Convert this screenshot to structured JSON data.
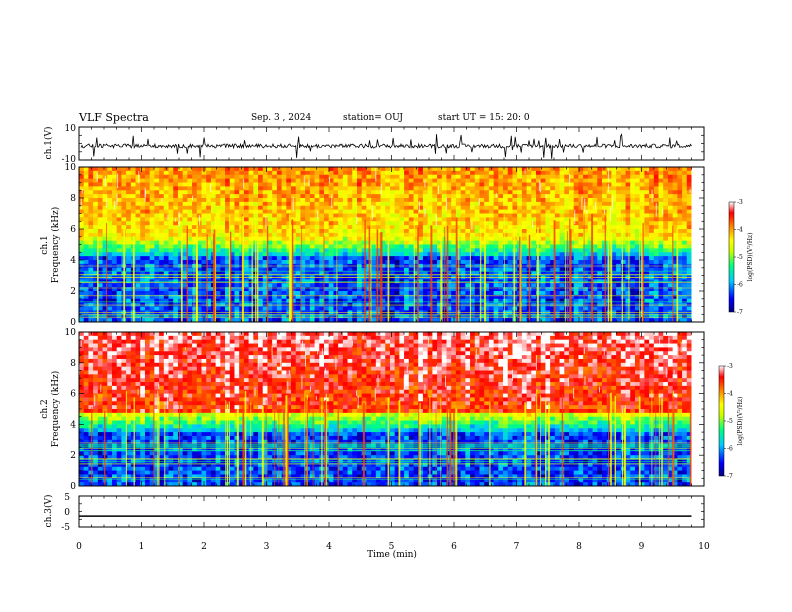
{
  "header": {
    "title": "VLF Spectra",
    "date": "Sep. 3  , 2024",
    "station": "station= OUJ",
    "start": "start  UT  =   15: 20: 0"
  },
  "chart_data": [
    {
      "type": "line",
      "name": "ch1-waveform",
      "ylabel": "ch.1(V)",
      "ylim": [
        -10,
        10
      ],
      "yticks": [
        "10",
        "-10"
      ],
      "baseline": -1.5,
      "noise_amplitude": 1.2
    },
    {
      "type": "heatmap",
      "name": "ch1-spectrogram",
      "ylabel_line1": "ch.1",
      "ylabel_line2": "Frequency (kHz)",
      "ylim": [
        0,
        10
      ],
      "yticks": [
        "0",
        "2",
        "4",
        "6",
        "8",
        "10"
      ],
      "colorbar": {
        "label": "log(PSD)(V²/Hz)",
        "range": [
          -7,
          -3
        ],
        "ticks": [
          "-3",
          "-4",
          "-5",
          "-6",
          "-7"
        ]
      },
      "transition_khz": 5.5
    },
    {
      "type": "heatmap",
      "name": "ch2-spectrogram",
      "ylabel_line1": "ch.2",
      "ylabel_line2": "Frequency (kHz)",
      "ylim": [
        0,
        10
      ],
      "yticks": [
        "0",
        "2",
        "4",
        "6",
        "8",
        "10"
      ],
      "colorbar": {
        "label": "log(PSD)(V²/Hz)",
        "range": [
          -7,
          -3
        ],
        "ticks": [
          "-3",
          "-4",
          "-5",
          "-6",
          "-7"
        ]
      },
      "transition_khz": 4.8
    },
    {
      "type": "line",
      "name": "ch3-waveform",
      "ylabel": "ch.3(V)",
      "ylim": [
        -5,
        5
      ],
      "yticks": [
        "5",
        "0",
        "-5"
      ],
      "values_constant": -1.5
    }
  ],
  "xaxis": {
    "label": "Time (min)",
    "range": [
      0,
      10
    ],
    "ticks": [
      "0",
      "1",
      "2",
      "3",
      "4",
      "5",
      "6",
      "7",
      "8",
      "9",
      "10"
    ],
    "data_end_min": 9.8
  },
  "colors": {
    "scale": [
      "#000080",
      "#0000ff",
      "#00c8ff",
      "#00ff80",
      "#c8ff00",
      "#ffff00",
      "#ff8000",
      "#ff0000",
      "#ffffff"
    ]
  }
}
